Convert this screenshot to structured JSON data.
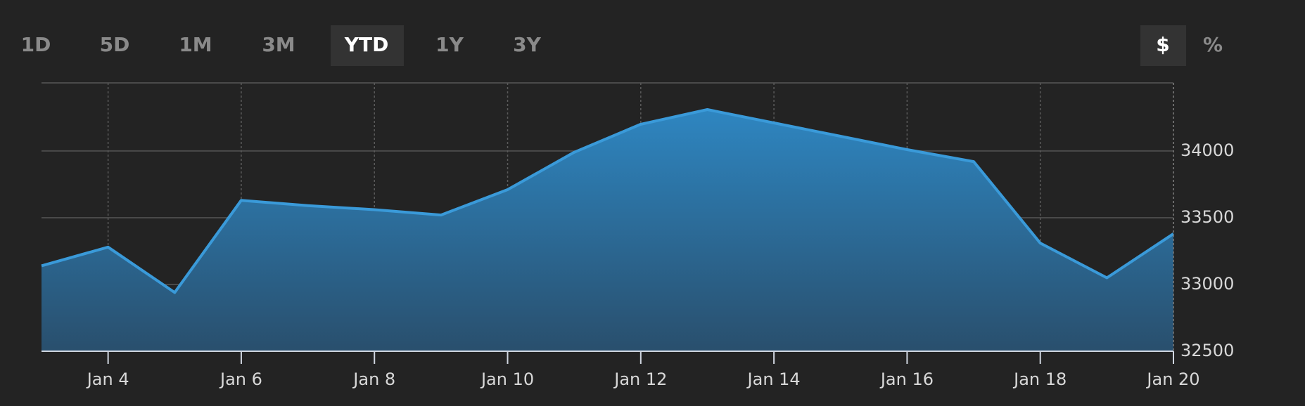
{
  "range_buttons": [
    "1D",
    "5D",
    "1M",
    "3M",
    "YTD",
    "1Y",
    "3Y"
  ],
  "range_selected": "YTD",
  "unit_buttons": [
    "$",
    "%"
  ],
  "unit_selected": "$",
  "chart_data": {
    "type": "area",
    "x": [
      "Jan 3",
      "Jan 4",
      "Jan 5",
      "Jan 6",
      "Jan 7",
      "Jan 8",
      "Jan 9",
      "Jan 10",
      "Jan 11",
      "Jan 12",
      "Jan 13",
      "Jan 14",
      "Jan 15",
      "Jan 16",
      "Jan 17",
      "Jan 18",
      "Jan 19",
      "Jan 20"
    ],
    "series": [
      {
        "color": "#3a9ad9",
        "values": [
          33140,
          33280,
          32940,
          33630,
          33590,
          33560,
          33520,
          33710,
          33990,
          34200,
          34310,
          34210,
          34110,
          34010,
          33920,
          33310,
          33050,
          33380
        ]
      }
    ],
    "xticks": [
      "Jan 4",
      "Jan 6",
      "Jan 8",
      "Jan 10",
      "Jan 12",
      "Jan 14",
      "Jan 16",
      "Jan 18",
      "Jan 20"
    ],
    "ylim": [
      32500,
      34510
    ],
    "yticks": [
      32500,
      33000,
      33500,
      34000
    ],
    "grid": true
  }
}
